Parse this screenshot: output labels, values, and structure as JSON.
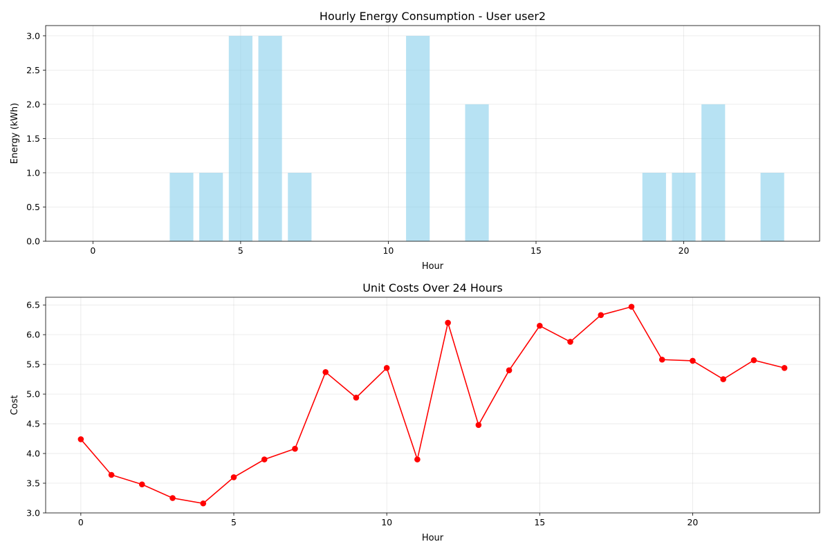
{
  "chart_data": [
    {
      "type": "bar",
      "title": "Hourly Energy Consumption - User user2",
      "xlabel": "Hour",
      "ylabel": "Energy (kWh)",
      "x": [
        0,
        1,
        2,
        3,
        4,
        5,
        6,
        7,
        8,
        9,
        10,
        11,
        12,
        13,
        14,
        15,
        16,
        17,
        18,
        19,
        20,
        21,
        22,
        23
      ],
      "values": [
        0,
        0,
        0,
        1,
        1,
        3,
        3,
        1,
        0,
        0,
        0,
        3,
        0,
        2,
        0,
        0,
        0,
        0,
        0,
        1,
        1,
        2,
        0,
        1
      ],
      "xlim": [
        -1.6,
        24.6
      ],
      "ylim": [
        0,
        3.15
      ],
      "xticks": [
        0,
        5,
        10,
        15,
        20
      ],
      "xtick_labels": [
        "0",
        "5",
        "10",
        "15",
        "20"
      ],
      "yticks": [
        0,
        0.5,
        1,
        1.5,
        2,
        2.5,
        3
      ],
      "ytick_labels": [
        "0.0",
        "0.5",
        "1.0",
        "1.5",
        "2.0",
        "2.5",
        "3.0"
      ],
      "grid": true,
      "color": "#87ceeb"
    },
    {
      "type": "line",
      "title": "Unit Costs Over 24 Hours",
      "xlabel": "Hour",
      "ylabel": "Cost",
      "x": [
        0,
        1,
        2,
        3,
        4,
        5,
        6,
        7,
        8,
        9,
        10,
        11,
        12,
        13,
        14,
        15,
        16,
        17,
        18,
        19,
        20,
        21,
        22,
        23
      ],
      "values": [
        4.24,
        3.64,
        3.48,
        3.25,
        3.16,
        3.6,
        3.9,
        4.08,
        5.37,
        4.94,
        5.44,
        3.9,
        6.2,
        4.48,
        5.4,
        6.15,
        5.88,
        6.33,
        6.47,
        5.58,
        5.56,
        5.25,
        5.57,
        5.44
      ],
      "xlim": [
        -1.15,
        24.15
      ],
      "ylim": [
        3.0,
        6.63
      ],
      "xticks": [
        0,
        5,
        10,
        15,
        20
      ],
      "xtick_labels": [
        "0",
        "5",
        "10",
        "15",
        "20"
      ],
      "yticks": [
        3.0,
        3.5,
        4.0,
        4.5,
        5.0,
        5.5,
        6.0,
        6.5
      ],
      "ytick_labels": [
        "3.0",
        "3.5",
        "4.0",
        "4.5",
        "5.0",
        "5.5",
        "6.0",
        "6.5"
      ],
      "grid": true,
      "color": "#ff0000",
      "marker": "circle"
    }
  ]
}
